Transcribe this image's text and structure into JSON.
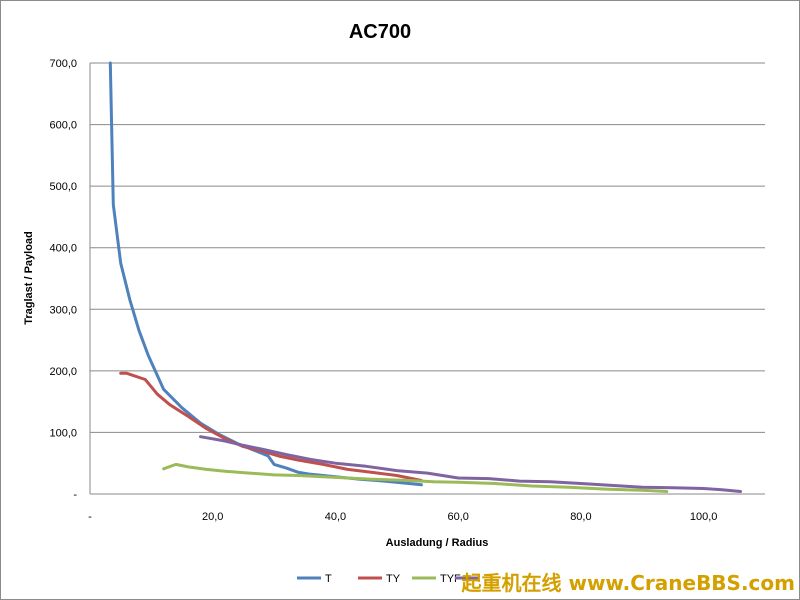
{
  "chart_data": {
    "type": "line",
    "title": "AC700",
    "xlabel": "Ausladung / Radius",
    "ylabel": "Traglast / Payload",
    "xlim": [
      0,
      110
    ],
    "ylim": [
      0,
      700
    ],
    "x_ticks": [
      "-",
      "20,0",
      "40,0",
      "60,0",
      "80,0",
      "100,0"
    ],
    "y_ticks": [
      "-",
      "100,0",
      "200,0",
      "300,0",
      "400,0",
      "500,0",
      "600,0",
      "700,0"
    ],
    "grid": true,
    "legend_position": "bottom-right",
    "series": [
      {
        "name": "T",
        "color": "#4f81bd",
        "points": [
          [
            3.3,
            700
          ],
          [
            3.8,
            470
          ],
          [
            5,
            375
          ],
          [
            6.5,
            315
          ],
          [
            8,
            265
          ],
          [
            9.5,
            225
          ],
          [
            12,
            170
          ],
          [
            15,
            140
          ],
          [
            18,
            115
          ],
          [
            21,
            97
          ],
          [
            24,
            82
          ],
          [
            27,
            70
          ],
          [
            29,
            62
          ],
          [
            30,
            48
          ],
          [
            32,
            42
          ],
          [
            34,
            35
          ],
          [
            36,
            32
          ],
          [
            38,
            30
          ],
          [
            40,
            28
          ],
          [
            44,
            24
          ],
          [
            48,
            21
          ],
          [
            52,
            17
          ],
          [
            54,
            15
          ]
        ]
      },
      {
        "name": "TY",
        "color": "#c0504d",
        "points": [
          [
            5,
            196
          ],
          [
            6,
            196
          ],
          [
            9,
            186
          ],
          [
            11,
            162
          ],
          [
            13,
            145
          ],
          [
            16,
            126
          ],
          [
            19,
            106
          ],
          [
            22,
            90
          ],
          [
            25,
            77
          ],
          [
            28,
            70
          ],
          [
            31,
            61
          ],
          [
            34,
            55
          ],
          [
            38,
            48
          ],
          [
            42,
            40
          ],
          [
            46,
            35
          ],
          [
            50,
            30
          ],
          [
            54,
            22
          ]
        ]
      },
      {
        "name": "TYF",
        "color": "#9bbb59",
        "points": [
          [
            12,
            41
          ],
          [
            14,
            48
          ],
          [
            16,
            44
          ],
          [
            19,
            40
          ],
          [
            22,
            37
          ],
          [
            26,
            34
          ],
          [
            30,
            31
          ],
          [
            34,
            30
          ],
          [
            40,
            27
          ],
          [
            46,
            24
          ],
          [
            52,
            22
          ],
          [
            56,
            20
          ],
          [
            60,
            19
          ],
          [
            66,
            17
          ],
          [
            72,
            13
          ],
          [
            78,
            11
          ],
          [
            84,
            8
          ],
          [
            90,
            6
          ],
          [
            94,
            4
          ]
        ]
      },
      {
        "name": "",
        "color": "#8064a2",
        "points": [
          [
            18,
            93
          ],
          [
            22,
            86
          ],
          [
            25,
            79
          ],
          [
            28,
            73
          ],
          [
            32,
            64
          ],
          [
            36,
            56
          ],
          [
            40,
            50
          ],
          [
            45,
            45
          ],
          [
            50,
            38
          ],
          [
            55,
            34
          ],
          [
            60,
            26
          ],
          [
            65,
            25
          ],
          [
            70,
            21
          ],
          [
            75,
            20
          ],
          [
            80,
            17
          ],
          [
            85,
            14
          ],
          [
            90,
            11
          ],
          [
            95,
            10
          ],
          [
            100,
            9
          ],
          [
            103,
            7
          ],
          [
            106,
            4
          ]
        ]
      }
    ]
  },
  "watermark": "起重机在线 www.CraneBBS.com"
}
